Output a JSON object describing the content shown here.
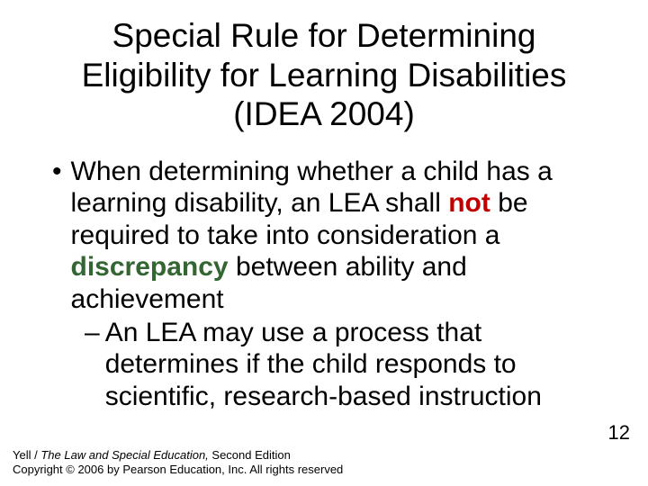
{
  "title": "Special Rule for Determining Eligibility for Learning Disabilities (IDEA 2004)",
  "bullet": {
    "pre": "When determining whether a child has a learning disability, an LEA shall ",
    "not": "not",
    "mid": " be required to take into consideration a ",
    "disc": "discrepancy",
    "post": " between ability and achievement"
  },
  "sub": "An LEA may use a process that determines if the child responds to scientific, research-based instruction",
  "footer": {
    "line1_author": "Yell / ",
    "line1_title": "The Law and Special Education,",
    "line1_edition": " Second Edition",
    "line2": "Copyright © 2006 by Pearson Education, Inc. All rights reserved"
  },
  "pagenum": "12",
  "colors": {
    "not": "#c00000",
    "discrepancy": "#336633",
    "text": "#000000",
    "background": "#ffffff"
  }
}
